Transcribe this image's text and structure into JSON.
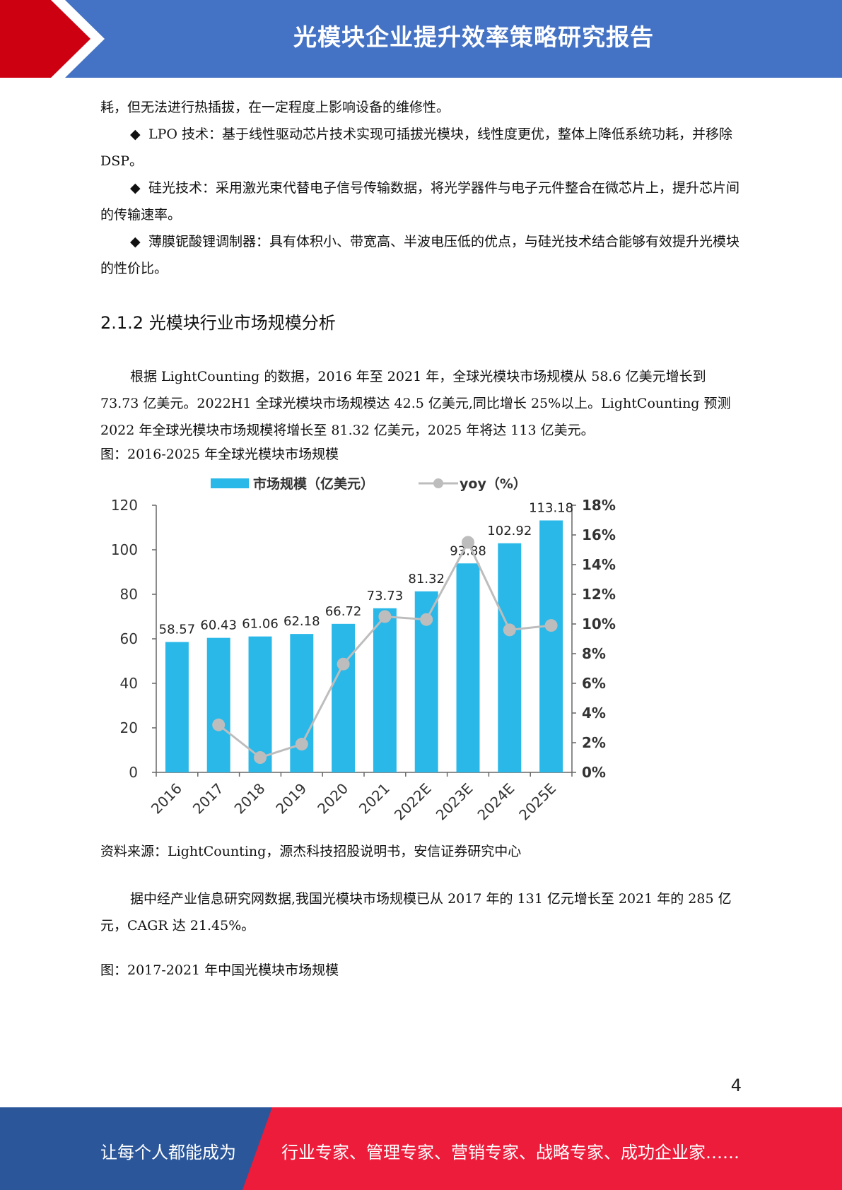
{
  "header": {
    "title": "光模块企业提升效率策略研究报告",
    "colors": {
      "red": "#cc0011",
      "blue": "#4472c4"
    }
  },
  "paragraphs": {
    "p1": "耗，但无法进行热插拔，在一定程度上影响设备的维修性。",
    "b1_glyph": "◆",
    "b1": "LPO 技术：基于线性驱动芯片技术实现可插拔光模块，线性度更优，整体上降低系统功耗，并移除 DSP。",
    "b2_glyph": "◆",
    "b2": "硅光技术：采用激光束代替电子信号传输数据，将光学器件与电子元件整合在微芯片上，提升芯片间的传输速率。",
    "b3_glyph": "◆",
    "b3": "薄膜铌酸锂调制器：具有体积小、带宽高、半波电压低的优点，与硅光技术结合能够有效提升光模块的性价比。"
  },
  "section_heading": "2.1.2 光模块行业市场规模分析",
  "paragraph_global": "根据 LightCounting 的数据，2016 年至 2021 年，全球光模块市场规模从 58.6 亿美元增长到 73.73 亿美元。2022H1 全球光模块市场规模达 42.5 亿美元,同比增长 25%以上。LightCounting 预测 2022 年全球光模块市场规模将增长至 81.32 亿美元，2025 年将达 113 亿美元。",
  "figure1_caption": "图：2016-2025 年全球光模块市场规模",
  "chart_data": {
    "type": "bar",
    "categories": [
      "2016",
      "2017",
      "2018",
      "2019",
      "2020",
      "2021",
      "2022E",
      "2023E",
      "2024E",
      "2025E"
    ],
    "series": [
      {
        "name": "市场规模（亿美元）",
        "type": "bar",
        "axis": "left",
        "color": "#29b8e8",
        "values": [
          58.57,
          60.43,
          61.06,
          62.18,
          66.72,
          73.73,
          81.32,
          93.88,
          102.92,
          113.18
        ],
        "labels": [
          "58.57",
          "60.43",
          "61.06",
          "62.18",
          "66.72",
          "73.73",
          "81.32",
          "93.88",
          "102.92",
          "113.18"
        ]
      },
      {
        "name": "yoy（%）",
        "type": "line",
        "axis": "right",
        "color": "#bdbdbd",
        "values": [
          null,
          3.2,
          1.0,
          1.9,
          7.3,
          10.5,
          10.3,
          15.5,
          9.6,
          9.9
        ]
      }
    ],
    "ylim": [
      0,
      120
    ],
    "yticks": [
      "0",
      "20",
      "40",
      "60",
      "80",
      "100",
      "120"
    ],
    "y2lim": [
      0,
      18
    ],
    "y2ticks": [
      "0%",
      "2%",
      "4%",
      "6%",
      "8%",
      "10%",
      "12%",
      "14%",
      "16%",
      "18%"
    ],
    "legend_position": "top",
    "grid": false
  },
  "figure1_source": "资料来源：LightCounting，源杰科技招股说明书，安信证券研究中心",
  "paragraph_china": "据中经产业信息研究网数据,我国光模块市场规模已从 2017 年的 131 亿元增长至 2021 年的 285 亿元，CAGR 达 21.45%。",
  "figure2_caption": "图：2017-2021 年中国光模块市场规模",
  "page_number": "4",
  "footer": {
    "left": "让每个人都能成为",
    "right": "行业专家、管理专家、营销专家、战略专家、成功企业家……",
    "colors": {
      "blue": "#2b579a",
      "red": "#ed1c3b"
    }
  }
}
